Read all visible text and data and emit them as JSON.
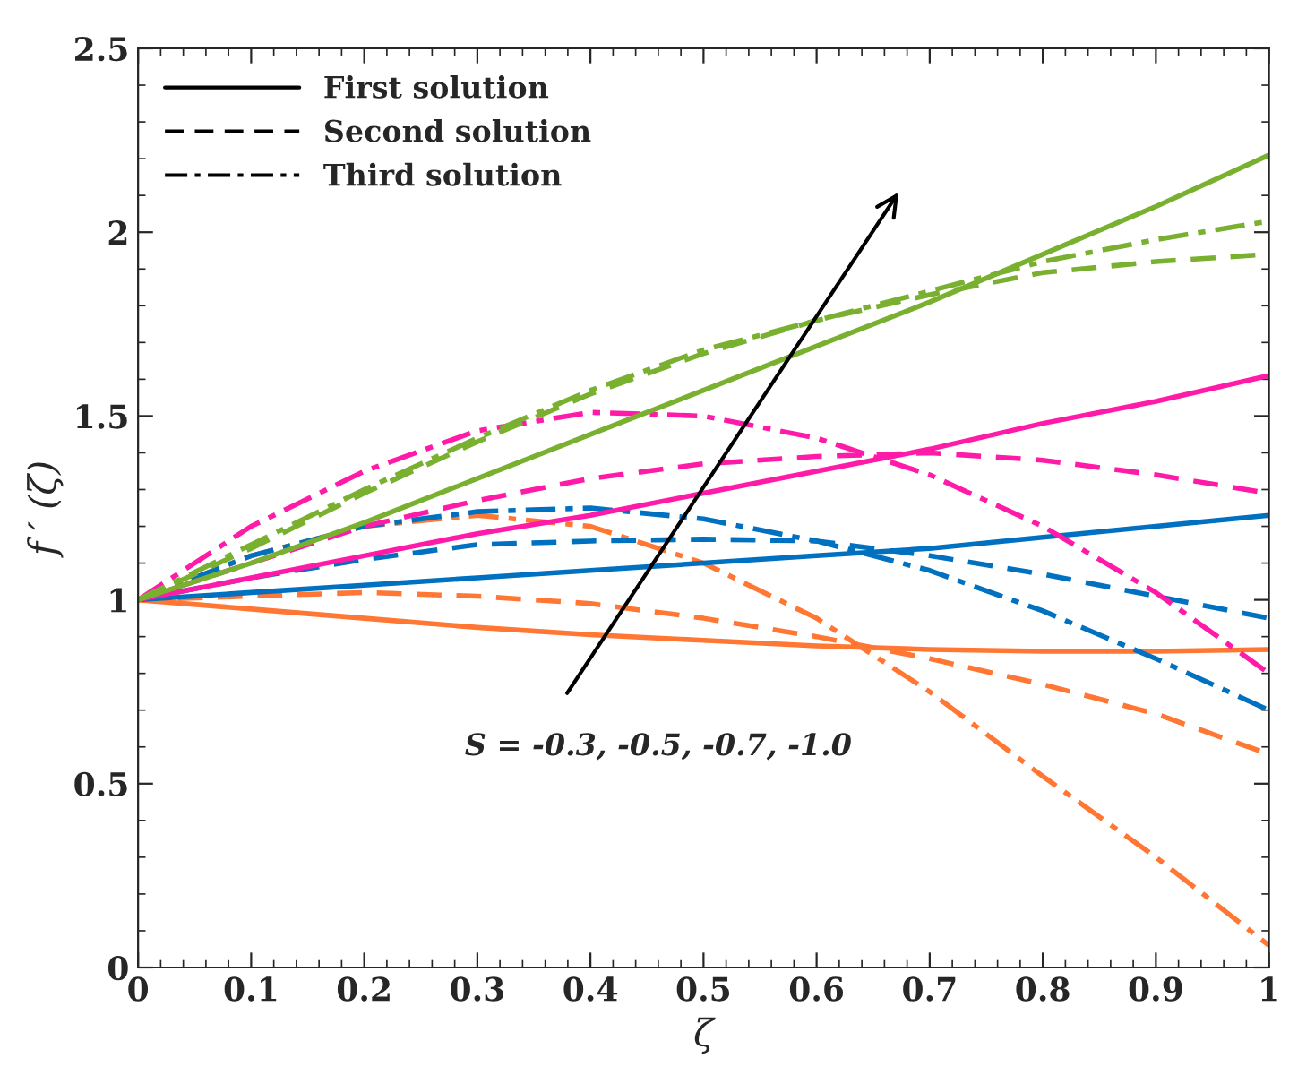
{
  "chart_data": {
    "type": "line",
    "xlabel": "ζ",
    "ylabel": "f ′ (ζ)",
    "x": [
      0,
      0.1,
      0.2,
      0.3,
      0.4,
      0.5,
      0.6,
      0.7,
      0.8,
      0.9,
      1.0
    ],
    "xlim": [
      0,
      1
    ],
    "ylim": [
      0,
      2.5
    ],
    "xticks": [
      0,
      0.1,
      0.2,
      0.3,
      0.4,
      0.5,
      0.6,
      0.7,
      0.8,
      0.9,
      1
    ],
    "yticks": [
      0,
      0.5,
      1,
      1.5,
      2,
      2.5
    ],
    "grid": false,
    "marker": "none",
    "series": [
      {
        "line_style": "solid",
        "color": "#ff7733",
        "values": [
          1,
          0.975,
          0.95,
          0.925,
          0.905,
          0.89,
          0.875,
          0.865,
          0.86,
          0.86,
          0.865
        ]
      },
      {
        "line_style": "dashed",
        "color": "#ff7733",
        "values": [
          1,
          1.01,
          1.02,
          1.01,
          0.99,
          0.95,
          0.9,
          0.84,
          0.77,
          0.69,
          0.58
        ]
      },
      {
        "line_style": "dashdot",
        "color": "#ff7733",
        "values": [
          1,
          1.12,
          1.2,
          1.23,
          1.2,
          1.1,
          0.95,
          0.75,
          0.52,
          0.3,
          0.06
        ]
      },
      {
        "line_style": "solid",
        "color": "#0070c0",
        "values": [
          1,
          1.02,
          1.04,
          1.06,
          1.08,
          1.1,
          1.12,
          1.14,
          1.17,
          1.2,
          1.23
        ]
      },
      {
        "line_style": "dashed",
        "color": "#0070c0",
        "values": [
          1,
          1.06,
          1.11,
          1.15,
          1.16,
          1.165,
          1.16,
          1.12,
          1.07,
          1.01,
          0.95
        ]
      },
      {
        "line_style": "dashdot",
        "color": "#0070c0",
        "values": [
          1,
          1.12,
          1.2,
          1.24,
          1.25,
          1.22,
          1.16,
          1.08,
          0.97,
          0.84,
          0.7
        ]
      },
      {
        "line_style": "solid",
        "color": "#ff1aa8",
        "values": [
          1,
          1.06,
          1.12,
          1.18,
          1.23,
          1.29,
          1.35,
          1.41,
          1.48,
          1.54,
          1.61
        ]
      },
      {
        "line_style": "dashed",
        "color": "#ff1aa8",
        "values": [
          1,
          1.1,
          1.2,
          1.27,
          1.33,
          1.37,
          1.39,
          1.4,
          1.38,
          1.34,
          1.29
        ]
      },
      {
        "line_style": "dashdot",
        "color": "#ff1aa8",
        "values": [
          1,
          1.2,
          1.35,
          1.46,
          1.51,
          1.5,
          1.44,
          1.34,
          1.2,
          1.02,
          0.8
        ]
      },
      {
        "line_style": "solid",
        "color": "#7ab030",
        "values": [
          1,
          1.1,
          1.21,
          1.33,
          1.45,
          1.57,
          1.69,
          1.81,
          1.94,
          2.07,
          2.21
        ]
      },
      {
        "line_style": "dashed",
        "color": "#7ab030",
        "values": [
          1,
          1.14,
          1.29,
          1.43,
          1.56,
          1.67,
          1.76,
          1.83,
          1.89,
          1.92,
          1.94
        ]
      },
      {
        "line_style": "dashdot",
        "color": "#7ab030",
        "values": [
          1,
          1.15,
          1.3,
          1.44,
          1.57,
          1.68,
          1.76,
          1.84,
          1.92,
          1.98,
          2.03
        ]
      }
    ],
    "annotations": [
      "First solution",
      "Second solution",
      "Third solution",
      "S = -0.3, -0.5, -0.7, -1.0"
    ]
  }
}
